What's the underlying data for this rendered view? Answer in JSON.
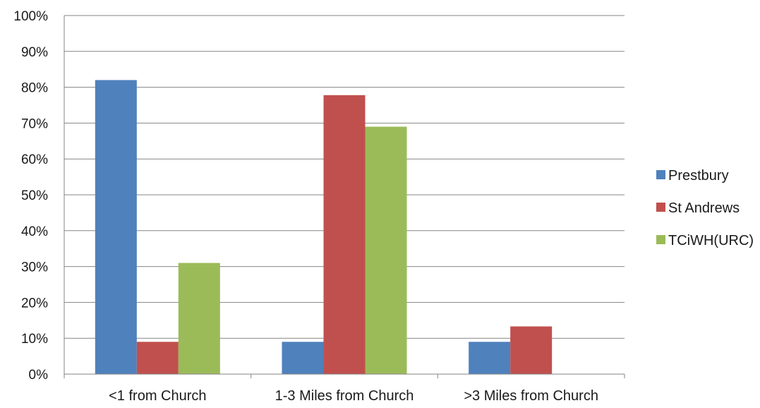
{
  "chart_data": {
    "type": "bar",
    "title": "",
    "xlabel": "",
    "ylabel": "",
    "ylim": [
      0,
      1
    ],
    "yticks": [
      "0%",
      "10%",
      "20%",
      "30%",
      "40%",
      "50%",
      "60%",
      "70%",
      "80%",
      "90%",
      "100%"
    ],
    "grid": true,
    "legend_position": "right",
    "categories": [
      "<1 from Church",
      "1-3 Miles from Church",
      ">3 Miles from Church"
    ],
    "series": [
      {
        "name": "Prestbury",
        "color": "#4F81BD",
        "values": [
          0.82,
          0.09,
          0.09
        ]
      },
      {
        "name": "St Andrews",
        "color": "#C0504D",
        "values": [
          0.09,
          0.778,
          0.133
        ]
      },
      {
        "name": "TCiWH(URC)",
        "color": "#9BBB59",
        "values": [
          0.31,
          0.69,
          0.0
        ]
      }
    ]
  }
}
